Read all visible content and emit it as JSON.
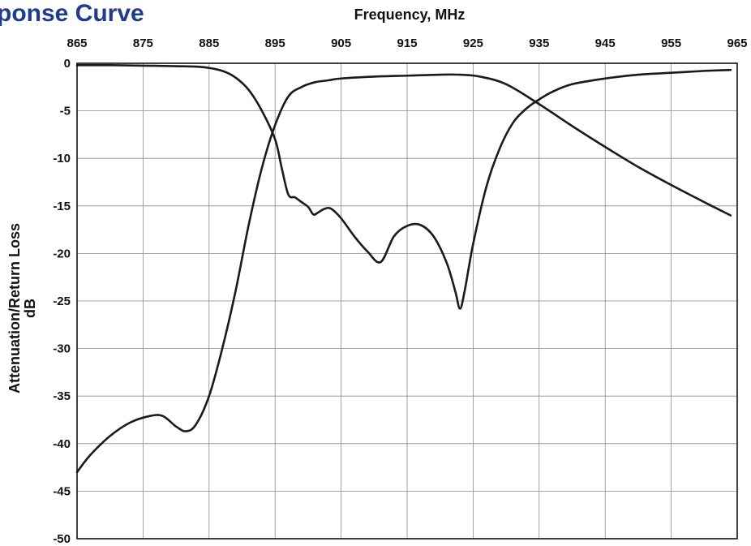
{
  "title": "ponse Curve",
  "title_color": "#1f3c8c",
  "chart_data": {
    "type": "line",
    "title": "ponse Curve",
    "xlabel": "Frequency, MHz",
    "ylabel_line1": "Attenuation/Return Loss",
    "ylabel_line2": "dB",
    "xlim": [
      865,
      965
    ],
    "ylim": [
      -50,
      0
    ],
    "x_ticks": [
      "865",
      "875",
      "885",
      "895",
      "905",
      "915",
      "925",
      "935",
      "945",
      "955",
      "965"
    ],
    "y_ticks": [
      "0",
      "-5",
      "-10",
      "-15",
      "-20",
      "-25",
      "-30",
      "-35",
      "-40",
      "-45",
      "-50"
    ],
    "x_tick_values": [
      865,
      875,
      885,
      895,
      905,
      915,
      925,
      935,
      945,
      955,
      965
    ],
    "y_tick_values": [
      0,
      -5,
      -10,
      -15,
      -20,
      -25,
      -30,
      -35,
      -40,
      -45,
      -50
    ],
    "grid": true,
    "line_color": "#1a1a1a",
    "series": [
      {
        "x": [
          865,
          867,
          870,
          873,
          876,
          878,
          880,
          881.5,
          883,
          885,
          887,
          889,
          891,
          893,
          895,
          897,
          899,
          901,
          903,
          905,
          910,
          915,
          920,
          923,
          926,
          930,
          935,
          940,
          945,
          950,
          955,
          960,
          964
        ],
        "y": [
          -43,
          -41.2,
          -39.2,
          -37.8,
          -37.1,
          -37.1,
          -38.2,
          -38.7,
          -38.0,
          -35.0,
          -30.0,
          -24.0,
          -17.0,
          -11.0,
          -6.5,
          -3.5,
          -2.5,
          -2.0,
          -1.8,
          -1.6,
          -1.4,
          -1.3,
          -1.2,
          -1.2,
          -1.4,
          -2.2,
          -4.3,
          -6.6,
          -8.8,
          -10.9,
          -12.8,
          -14.6,
          -16.0
        ]
      },
      {
        "x": [
          865,
          870,
          875,
          880,
          884,
          887,
          889,
          891,
          893,
          895,
          896,
          897,
          898,
          899,
          900,
          900.8,
          901.5,
          902.5,
          903.5,
          905,
          907,
          909,
          911,
          913,
          915,
          917,
          919,
          921,
          922.3,
          923,
          923.7,
          925,
          927,
          929,
          931,
          933,
          935,
          937,
          940,
          945,
          950,
          955,
          960,
          964
        ],
        "y": [
          -0.2,
          -0.2,
          -0.25,
          -0.3,
          -0.4,
          -0.8,
          -1.5,
          -2.8,
          -5.0,
          -8.0,
          -11.0,
          -13.8,
          -14.1,
          -14.6,
          -15.1,
          -15.9,
          -15.7,
          -15.3,
          -15.3,
          -16.3,
          -18.2,
          -19.8,
          -20.9,
          -18.2,
          -17.1,
          -17.0,
          -18.2,
          -21.0,
          -24.0,
          -25.8,
          -24.0,
          -19.0,
          -13.0,
          -9.0,
          -6.3,
          -4.8,
          -3.8,
          -3.0,
          -2.2,
          -1.6,
          -1.2,
          -1.0,
          -0.8,
          -0.7
        ]
      }
    ]
  }
}
